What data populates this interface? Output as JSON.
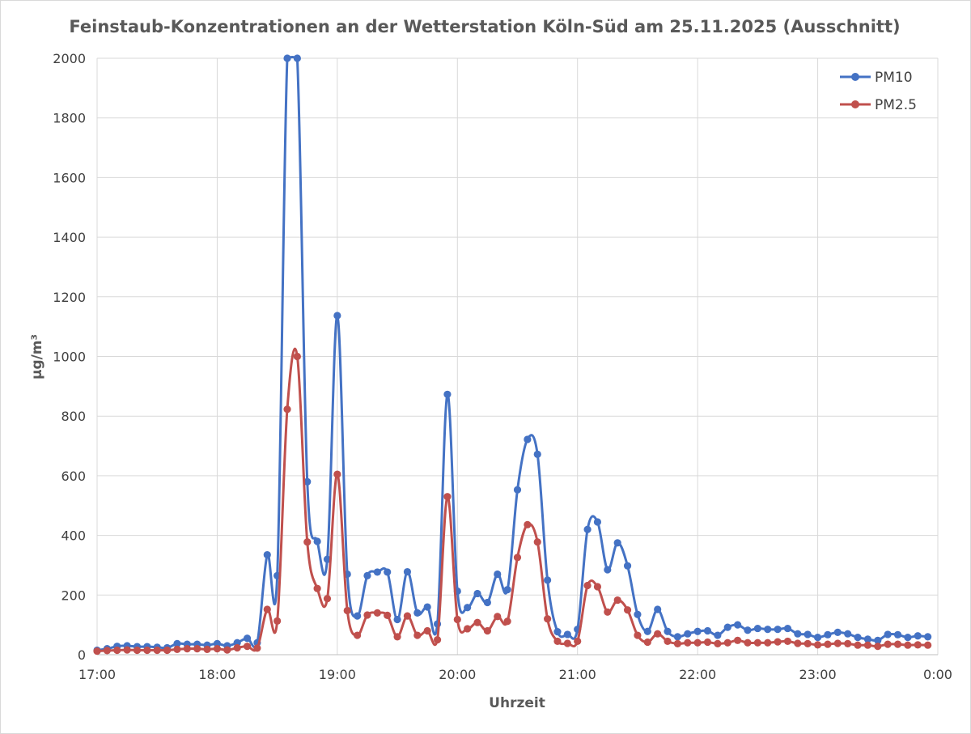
{
  "chart_data": {
    "type": "line",
    "title": "Feinstaub-Konzentrationen an der Wetterstation Köln-Süd am 25.11.2025 (Ausschnitt)",
    "xlabel": "Uhrzeit",
    "ylabel": "µg/m³",
    "ylim": [
      0,
      2000
    ],
    "y_ticks": [
      0,
      200,
      400,
      600,
      800,
      1000,
      1200,
      1400,
      1600,
      1800,
      2000
    ],
    "x_ticks": [
      "17:00",
      "18:00",
      "19:00",
      "20:00",
      "21:00",
      "22:00",
      "23:00",
      "0:00"
    ],
    "x_range": [
      "17:00",
      "0:00"
    ],
    "x_interval_minutes": 5,
    "grid": true,
    "legend_position": "top-right",
    "series": [
      {
        "name": "PM10",
        "color": "#4472c4",
        "values": [
          15,
          20,
          28,
          30,
          27,
          27,
          25,
          23,
          37,
          35,
          35,
          32,
          37,
          30,
          40,
          55,
          40,
          335,
          265,
          2000,
          2000,
          580,
          380,
          320,
          1137,
          270,
          130,
          265,
          277,
          277,
          118,
          278,
          140,
          160,
          103,
          873,
          213,
          158,
          205,
          175,
          270,
          218,
          553,
          722,
          672,
          250,
          77,
          68,
          85,
          420,
          445,
          285,
          375,
          298,
          135,
          78,
          152,
          78,
          60,
          70,
          78,
          80,
          65,
          92,
          100,
          82,
          88,
          85,
          85,
          88,
          70,
          68,
          58,
          67,
          75,
          70,
          58,
          52,
          48,
          68,
          67,
          58,
          63,
          60
        ]
      },
      {
        "name": "PM2.5",
        "color": "#c0504d",
        "values": [
          12,
          14,
          15,
          16,
          15,
          15,
          15,
          15,
          18,
          20,
          20,
          18,
          20,
          16,
          23,
          28,
          22,
          152,
          113,
          823,
          1000,
          378,
          222,
          188,
          605,
          148,
          65,
          133,
          140,
          132,
          60,
          130,
          65,
          80,
          50,
          530,
          118,
          87,
          108,
          80,
          128,
          112,
          326,
          436,
          378,
          120,
          45,
          38,
          45,
          232,
          228,
          143,
          183,
          150,
          65,
          42,
          70,
          45,
          37,
          40,
          40,
          42,
          37,
          40,
          48,
          40,
          40,
          40,
          43,
          45,
          38,
          37,
          33,
          35,
          38,
          37,
          32,
          32,
          28,
          35,
          35,
          32,
          33,
          32
        ]
      }
    ]
  }
}
